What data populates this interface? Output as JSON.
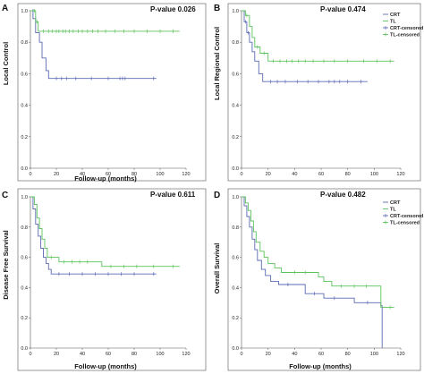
{
  "colors": {
    "CRT": "#5b6ab3",
    "TL": "#5cc35c",
    "axis": "#555555"
  },
  "legend": {
    "B": [
      "CRT",
      "TL",
      "CRT-censored",
      "TL-censored"
    ],
    "D": [
      "CRT",
      "TL",
      "CRT-censored",
      "TL-censored"
    ]
  },
  "chart_data": [
    {
      "panel": "A",
      "type": "line",
      "step": true,
      "annotation": "P-value 0.026",
      "xlabel": "Follow-up (months)",
      "ylabel": "Local Control",
      "xlim": [
        0,
        120
      ],
      "ylim": [
        0,
        1
      ],
      "xticks": [
        "0",
        "20",
        "40",
        "60",
        "80",
        "100",
        "120"
      ],
      "yticks": [
        "0.0",
        "0.2",
        "0.4",
        "0.6",
        "0.8",
        "1.0"
      ],
      "series": [
        {
          "key": "CRT",
          "points": [
            [
              0,
              1.0
            ],
            [
              2,
              0.95
            ],
            [
              4,
              0.86
            ],
            [
              7,
              0.8
            ],
            [
              9,
              0.7
            ],
            [
              12,
              0.62
            ],
            [
              14,
              0.57
            ],
            [
              97,
              0.57
            ]
          ],
          "censored": [
            [
              2,
              1.0
            ],
            [
              4,
              0.95
            ],
            [
              20,
              0.57
            ],
            [
              24,
              0.57
            ],
            [
              28,
              0.57
            ],
            [
              35,
              0.57
            ],
            [
              47,
              0.57
            ],
            [
              60,
              0.57
            ],
            [
              69,
              0.57
            ],
            [
              71,
              0.57
            ],
            [
              73,
              0.57
            ],
            [
              95,
              0.57
            ]
          ]
        },
        {
          "key": "TL",
          "points": [
            [
              0,
              1.0
            ],
            [
              4,
              0.93
            ],
            [
              6,
              0.87
            ],
            [
              115,
              0.87
            ]
          ],
          "censored": [
            [
              3,
              1.0
            ],
            [
              5,
              0.93
            ],
            [
              10,
              0.87
            ],
            [
              14,
              0.87
            ],
            [
              17,
              0.87
            ],
            [
              20,
              0.87
            ],
            [
              22,
              0.87
            ],
            [
              25,
              0.87
            ],
            [
              27,
              0.87
            ],
            [
              30,
              0.87
            ],
            [
              33,
              0.87
            ],
            [
              37,
              0.87
            ],
            [
              40,
              0.87
            ],
            [
              44,
              0.87
            ],
            [
              48,
              0.87
            ],
            [
              52,
              0.87
            ],
            [
              58,
              0.87
            ],
            [
              65,
              0.87
            ],
            [
              72,
              0.87
            ],
            [
              80,
              0.87
            ],
            [
              90,
              0.87
            ],
            [
              100,
              0.87
            ],
            [
              110,
              0.87
            ]
          ]
        }
      ]
    },
    {
      "panel": "B",
      "type": "line",
      "step": true,
      "annotation": "P-value 0.474",
      "xlabel": "",
      "ylabel": "Local Regional Control",
      "xlim": [
        0,
        120
      ],
      "ylim": [
        0,
        1
      ],
      "xticks": [
        "0",
        "20",
        "40",
        "60",
        "80",
        "100",
        "120"
      ],
      "yticks": [
        "0.0",
        "0.2",
        "0.4",
        "0.6",
        "0.8",
        "1.0"
      ],
      "series": [
        {
          "key": "CRT",
          "points": [
            [
              0,
              1.0
            ],
            [
              2,
              0.93
            ],
            [
              4,
              0.86
            ],
            [
              6,
              0.8
            ],
            [
              8,
              0.74
            ],
            [
              10,
              0.68
            ],
            [
              13,
              0.6
            ],
            [
              16,
              0.55
            ],
            [
              95,
              0.55
            ]
          ],
          "censored": [
            [
              3,
              0.93
            ],
            [
              5,
              0.86
            ],
            [
              22,
              0.55
            ],
            [
              27,
              0.55
            ],
            [
              33,
              0.55
            ],
            [
              42,
              0.55
            ],
            [
              50,
              0.55
            ],
            [
              58,
              0.55
            ],
            [
              66,
              0.55
            ],
            [
              70,
              0.55
            ],
            [
              74,
              0.55
            ],
            [
              80,
              0.55
            ],
            [
              90,
              0.55
            ]
          ]
        },
        {
          "key": "TL",
          "points": [
            [
              0,
              1.0
            ],
            [
              3,
              0.97
            ],
            [
              6,
              0.9
            ],
            [
              8,
              0.83
            ],
            [
              10,
              0.77
            ],
            [
              14,
              0.73
            ],
            [
              20,
              0.68
            ],
            [
              115,
              0.68
            ]
          ],
          "censored": [
            [
              4,
              0.97
            ],
            [
              12,
              0.77
            ],
            [
              17,
              0.73
            ],
            [
              24,
              0.68
            ],
            [
              29,
              0.68
            ],
            [
              34,
              0.68
            ],
            [
              38,
              0.68
            ],
            [
              43,
              0.68
            ],
            [
              48,
              0.68
            ],
            [
              54,
              0.68
            ],
            [
              62,
              0.68
            ],
            [
              70,
              0.68
            ],
            [
              80,
              0.68
            ],
            [
              92,
              0.68
            ],
            [
              102,
              0.68
            ],
            [
              112,
              0.68
            ]
          ]
        }
      ]
    },
    {
      "panel": "C",
      "type": "line",
      "step": true,
      "annotation": "P-value 0.611",
      "xlabel": "Follow-up (months)",
      "ylabel": "Disease Free Survival",
      "xlim": [
        0,
        120
      ],
      "ylim": [
        0,
        1
      ],
      "xticks": [
        "0",
        "20",
        "40",
        "60",
        "80",
        "100",
        "120"
      ],
      "yticks": [
        "0.0",
        "0.2",
        "0.4",
        "0.6",
        "0.8",
        "1.0"
      ],
      "series": [
        {
          "key": "CRT",
          "points": [
            [
              0,
              1.0
            ],
            [
              2,
              0.92
            ],
            [
              4,
              0.82
            ],
            [
              6,
              0.74
            ],
            [
              8,
              0.66
            ],
            [
              10,
              0.6
            ],
            [
              12,
              0.56
            ],
            [
              14,
              0.52
            ],
            [
              16,
              0.49
            ],
            [
              97,
              0.49
            ]
          ],
          "censored": [
            [
              22,
              0.49
            ],
            [
              30,
              0.49
            ],
            [
              40,
              0.49
            ],
            [
              50,
              0.49
            ],
            [
              60,
              0.49
            ],
            [
              70,
              0.49
            ],
            [
              80,
              0.49
            ],
            [
              95,
              0.49
            ]
          ]
        },
        {
          "key": "TL",
          "points": [
            [
              0,
              1.0
            ],
            [
              3,
              0.95
            ],
            [
              5,
              0.86
            ],
            [
              7,
              0.79
            ],
            [
              9,
              0.72
            ],
            [
              11,
              0.66
            ],
            [
              13,
              0.6
            ],
            [
              20,
              0.6
            ],
            [
              22,
              0.57
            ],
            [
              52,
              0.57
            ],
            [
              55,
              0.54
            ],
            [
              115,
              0.54
            ]
          ],
          "censored": [
            [
              16,
              0.6
            ],
            [
              26,
              0.57
            ],
            [
              32,
              0.57
            ],
            [
              38,
              0.57
            ],
            [
              44,
              0.57
            ],
            [
              62,
              0.54
            ],
            [
              72,
              0.54
            ],
            [
              82,
              0.54
            ],
            [
              95,
              0.54
            ],
            [
              110,
              0.54
            ]
          ]
        }
      ]
    },
    {
      "panel": "D",
      "type": "line",
      "step": true,
      "annotation": "P-value 0.482",
      "xlabel": "Follow-up (months)",
      "ylabel": "Overall Survival",
      "xlim": [
        0,
        120
      ],
      "ylim": [
        0,
        1
      ],
      "xticks": [
        "0",
        "20",
        "40",
        "60",
        "80",
        "100",
        "120"
      ],
      "yticks": [
        "0.0",
        "0.2",
        "0.4",
        "0.6",
        "0.8",
        "1.0"
      ],
      "series": [
        {
          "key": "CRT",
          "points": [
            [
              0,
              1.0
            ],
            [
              2,
              0.94
            ],
            [
              4,
              0.87
            ],
            [
              6,
              0.8
            ],
            [
              8,
              0.72
            ],
            [
              10,
              0.65
            ],
            [
              12,
              0.58
            ],
            [
              15,
              0.52
            ],
            [
              18,
              0.48
            ],
            [
              22,
              0.44
            ],
            [
              28,
              0.42
            ],
            [
              45,
              0.42
            ],
            [
              48,
              0.36
            ],
            [
              60,
              0.36
            ],
            [
              62,
              0.33
            ],
            [
              80,
              0.33
            ],
            [
              85,
              0.3
            ],
            [
              100,
              0.3
            ],
            [
              105,
              0.28
            ],
            [
              106,
              0.0
            ]
          ],
          "censored": [
            [
              35,
              0.42
            ],
            [
              55,
              0.36
            ],
            [
              70,
              0.33
            ],
            [
              95,
              0.3
            ]
          ]
        },
        {
          "key": "TL",
          "points": [
            [
              0,
              1.0
            ],
            [
              3,
              0.96
            ],
            [
              5,
              0.91
            ],
            [
              7,
              0.84
            ],
            [
              9,
              0.77
            ],
            [
              11,
              0.7
            ],
            [
              14,
              0.64
            ],
            [
              17,
              0.6
            ],
            [
              20,
              0.56
            ],
            [
              25,
              0.53
            ],
            [
              30,
              0.5
            ],
            [
              55,
              0.5
            ],
            [
              58,
              0.47
            ],
            [
              62,
              0.44
            ],
            [
              68,
              0.41
            ],
            [
              100,
              0.41
            ],
            [
              105,
              0.27
            ],
            [
              115,
              0.27
            ]
          ],
          "censored": [
            [
              40,
              0.5
            ],
            [
              48,
              0.5
            ],
            [
              75,
              0.41
            ],
            [
              85,
              0.41
            ],
            [
              94,
              0.41
            ],
            [
              112,
              0.27
            ]
          ]
        }
      ]
    }
  ]
}
